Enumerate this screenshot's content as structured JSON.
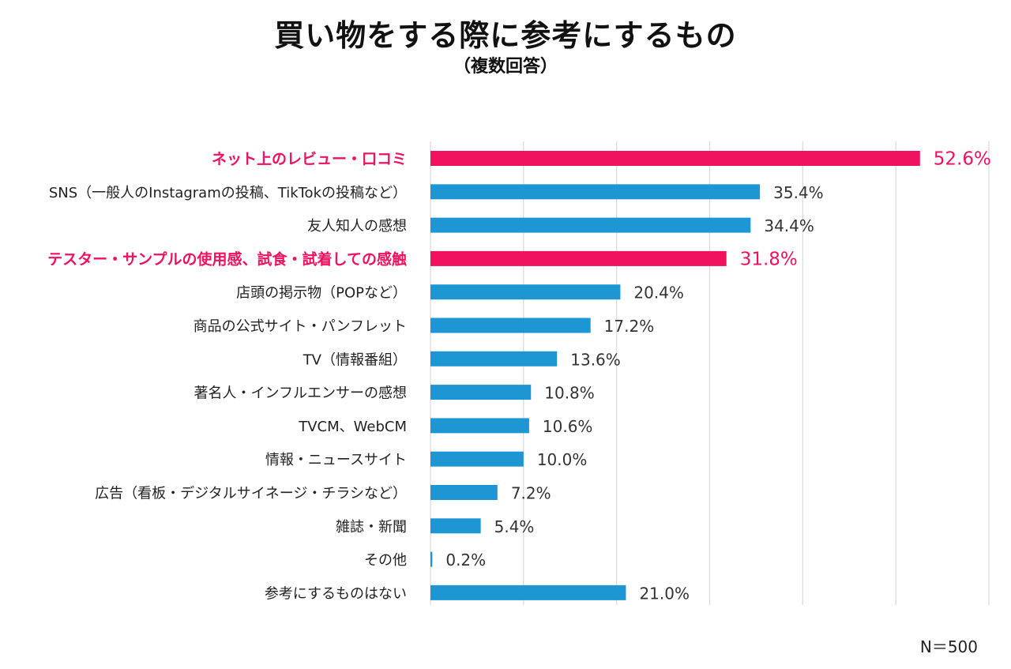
{
  "title": "買い物をする際に参考にするもの",
  "subtitle": "（複数回答）",
  "note": "N＝500",
  "chart_data": {
    "type": "bar",
    "orientation": "horizontal",
    "title": "買い物をする際に参考にするもの",
    "subtitle": "（複数回答）",
    "xlim": [
      0,
      60
    ],
    "grid": true,
    "value_format": "percent-1dp",
    "colors": {
      "default": "#1e96d4",
      "highlight": "#f0115f",
      "label_text": "#333333"
    },
    "categories": [
      "ネット上のレビュー・口コミ",
      "SNS（一般人のInstagramの投稿、TikTokの投稿など）",
      "友人知人の感想",
      "テスター・サンプルの使用感、試食・試着しての感触",
      "店頭の掲示物（POPなど）",
      "商品の公式サイト・パンフレット",
      "TV（情報番組）",
      "著名人・インフルエンサーの感想",
      "TVCM、WebCM",
      "情報・ニュースサイト",
      "広告（看板・デジタルサイネージ・チラシなど）",
      "雑誌・新聞",
      "その他",
      "参考にするものはない"
    ],
    "values": [
      52.6,
      35.4,
      34.4,
      31.8,
      20.4,
      17.2,
      13.6,
      10.8,
      10.6,
      10.0,
      7.2,
      5.4,
      0.2,
      21.0
    ],
    "highlighted": [
      true,
      false,
      false,
      true,
      false,
      false,
      false,
      false,
      false,
      false,
      false,
      false,
      false,
      false
    ]
  }
}
